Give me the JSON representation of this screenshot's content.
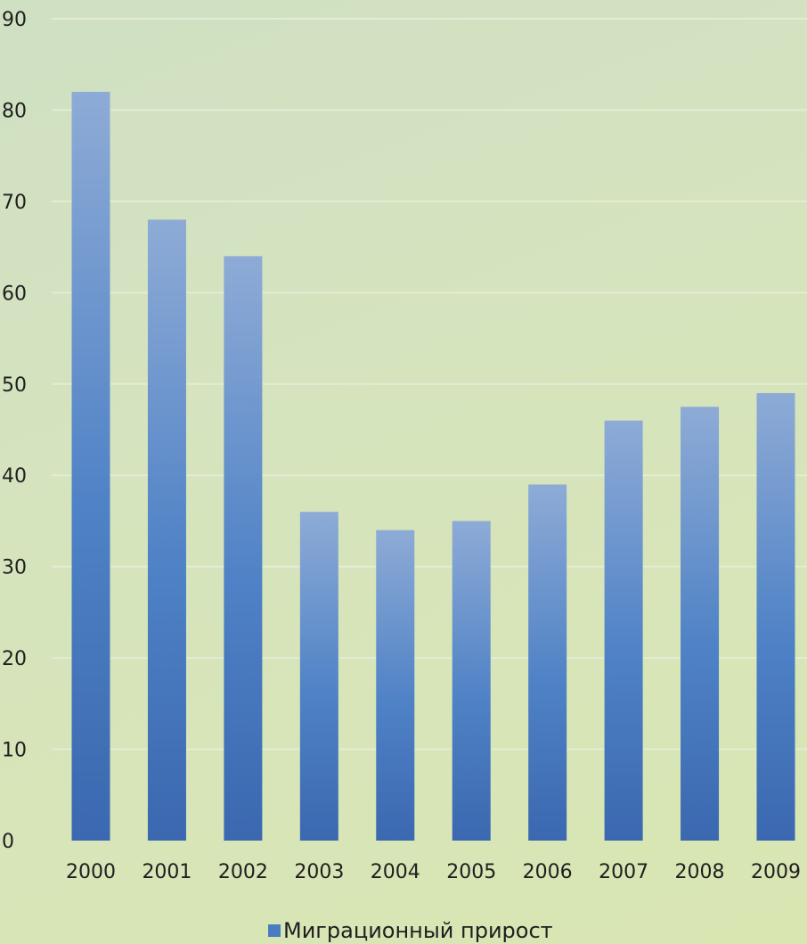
{
  "chart_data": {
    "type": "bar",
    "categories": [
      "2000",
      "2001",
      "2002",
      "2003",
      "2004",
      "2005",
      "2006",
      "2007",
      "2008",
      "2009"
    ],
    "series": [
      {
        "name": "Миграционный прирост",
        "values": [
          82,
          68,
          64,
          36,
          34,
          35,
          39,
          46,
          47.5,
          49
        ]
      }
    ],
    "ylim": [
      0,
      90
    ],
    "yticks": [
      "0",
      "10",
      "20",
      "30",
      "40",
      "50",
      "60",
      "70",
      "80",
      "90"
    ],
    "grid": true,
    "legend_position": "bottom",
    "colors": {
      "bar_top": "#8eabd6",
      "bar_mid": "#4f82c6",
      "bar_bottom": "#3b68b0",
      "grid": "#e4ecd5",
      "legend_swatch": "#4a7cc2"
    }
  }
}
